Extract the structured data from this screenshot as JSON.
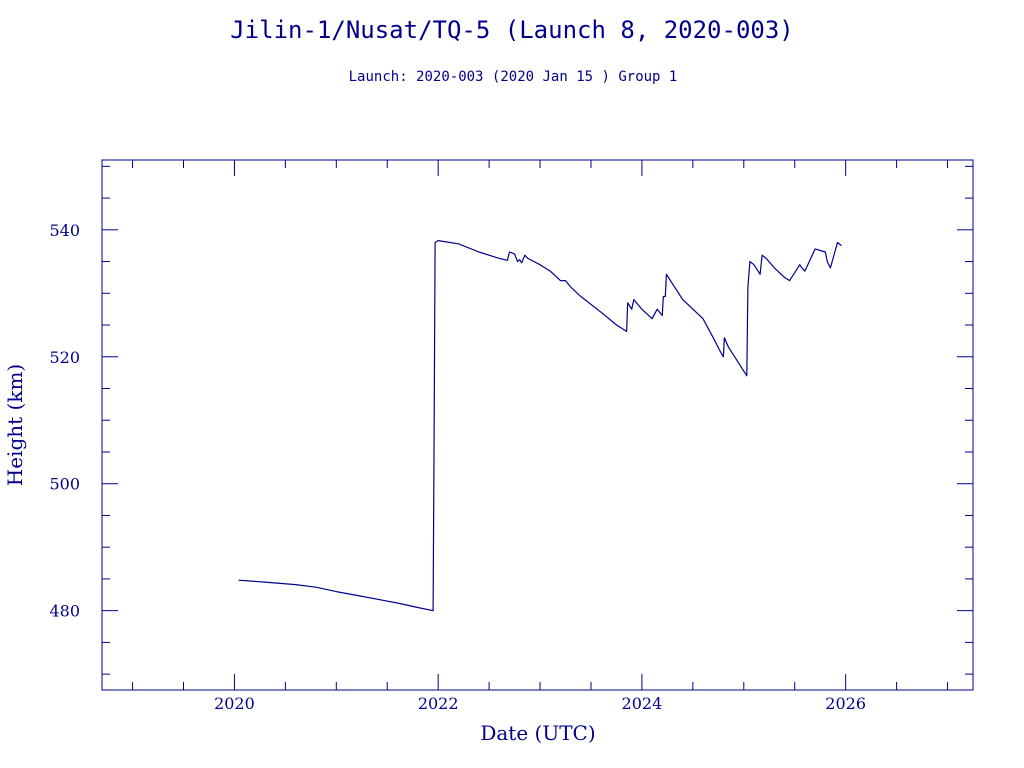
{
  "chart_data": {
    "type": "line",
    "title": "Jilin-1/Nusat/TQ-5 (Launch 8, 2020-003)",
    "subtitle": "Launch: 2020-003  (2020 Jan 15 )  Group 1",
    "xlabel": "Date (UTC)",
    "ylabel": "Height (km)",
    "xlim": [
      2018.7,
      2027.25
    ],
    "ylim": [
      467.5,
      551
    ],
    "x_ticks": [
      2020,
      2022,
      2024,
      2026
    ],
    "x_tick_labels": [
      "2020",
      "2022",
      "2024",
      "2026"
    ],
    "y_ticks": [
      480,
      500,
      520,
      540
    ],
    "y_tick_labels": [
      "480",
      "500",
      "520",
      "540"
    ],
    "grid": false,
    "series": [
      {
        "color": "#00008b",
        "x": [
          2020.04,
          2020.3,
          2020.6,
          2020.8,
          2021.0,
          2021.2,
          2021.4,
          2021.6,
          2021.8,
          2021.95,
          2021.96,
          2021.97,
          2022.0,
          2022.2,
          2022.4,
          2022.6,
          2022.68,
          2022.7,
          2022.75,
          2022.78,
          2022.8,
          2022.82,
          2022.85,
          2022.88,
          2023.0,
          2023.1,
          2023.2,
          2023.25,
          2023.3,
          2023.4,
          2023.6,
          2023.75,
          2023.85,
          2023.86,
          2023.9,
          2023.92,
          2024.0,
          2024.1,
          2024.15,
          2024.2,
          2024.21,
          2024.23,
          2024.24,
          2024.28,
          2024.4,
          2024.6,
          2024.7,
          2024.78,
          2024.8,
          2024.81,
          2024.85,
          2024.95,
          2025.03,
          2025.04,
          2025.06,
          2025.1,
          2025.16,
          2025.18,
          2025.22,
          2025.3,
          2025.4,
          2025.45,
          2025.55,
          2025.57,
          2025.6,
          2025.7,
          2025.8,
          2025.82,
          2025.85,
          2025.92,
          2025.96
        ],
        "y": [
          484.8,
          484.5,
          484.1,
          483.7,
          483.0,
          482.4,
          481.8,
          481.2,
          480.5,
          480.0,
          507.5,
          538.0,
          538.3,
          537.8,
          536.5,
          535.5,
          535.2,
          536.5,
          536.2,
          535.0,
          535.3,
          534.8,
          536.0,
          535.5,
          534.5,
          533.5,
          532.0,
          532.0,
          531.0,
          529.5,
          527.0,
          525.0,
          524.0,
          528.5,
          527.5,
          529.0,
          527.5,
          526.0,
          527.5,
          526.5,
          529.5,
          529.5,
          533.0,
          532.0,
          529.0,
          526.0,
          523.0,
          520.5,
          520.0,
          523.0,
          521.5,
          519.0,
          517.0,
          531.0,
          535.0,
          534.5,
          533.0,
          536.0,
          535.5,
          534.0,
          532.5,
          532.0,
          534.5,
          534.0,
          533.5,
          537.0,
          536.5,
          535.0,
          534.0,
          538.0,
          537.5
        ]
      }
    ]
  }
}
